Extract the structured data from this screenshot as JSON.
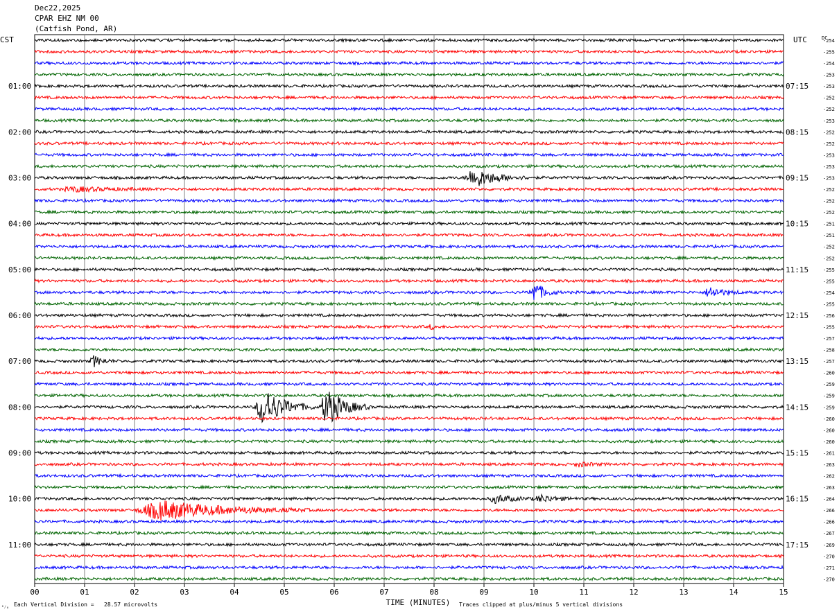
{
  "header": {
    "date": "Dec22,2025",
    "station": "CPAR EHZ NM 00",
    "location": "(Catfish Pond, AR)"
  },
  "left_tz": "CST",
  "right_tz": "UTC",
  "dc_label": "DC",
  "footer": {
    "scale_text": "Each Vertical Division =   28.57 microvolts",
    "clip_text": "Traces clipped at plus/minus 5 vertical divisions",
    "corner_mark": "⁰⁄₀"
  },
  "chart_data": {
    "type": "line",
    "title": "",
    "xlabel": "TIME (MINUTES)",
    "ylabel": "",
    "xlim": [
      0,
      15
    ],
    "x_ticks": [
      "00",
      "01",
      "02",
      "03",
      "04",
      "05",
      "06",
      "07",
      "08",
      "09",
      "10",
      "11",
      "12",
      "13",
      "14",
      "15"
    ],
    "trace_minutes": 15,
    "trace_count": 48,
    "trace_colors": [
      "#000000",
      "#ff0000",
      "#0000ff",
      "#006400"
    ],
    "grid": true,
    "left_hour_labels": [
      "01:00",
      "02:00",
      "03:00",
      "04:00",
      "05:00",
      "06:00",
      "07:00",
      "08:00",
      "09:00",
      "10:00",
      "11:00"
    ],
    "right_hour_labels": [
      "07:15",
      "08:15",
      "09:15",
      "10:15",
      "11:15",
      "12:15",
      "13:15",
      "14:15",
      "15:15",
      "16:15",
      "17:15"
    ],
    "dc_offsets": [
      -254,
      -255,
      -254,
      -253,
      -253,
      -252,
      -252,
      -253,
      -252,
      -252,
      -253,
      -253,
      -253,
      -252,
      -252,
      -252,
      -251,
      -251,
      -252,
      -252,
      -255,
      -255,
      -254,
      -255,
      -256,
      -255,
      -257,
      -258,
      -257,
      -260,
      -259,
      -259,
      -259,
      -260,
      -260,
      -260,
      -261,
      -263,
      -262,
      -263,
      -264,
      -266,
      -266,
      -267,
      -269,
      -270,
      -271,
      -270
    ],
    "events": [
      {
        "trace": 12,
        "minute": 8.6,
        "duration": 1.3,
        "amplitude": 14,
        "color": "#ff0000"
      },
      {
        "trace": 13,
        "minute": 0.5,
        "duration": 2.0,
        "amplitude": 3,
        "color": "#0000ff"
      },
      {
        "trace": 22,
        "minute": 9.9,
        "duration": 0.6,
        "amplitude": 16,
        "color": "#0000ff"
      },
      {
        "trace": 22,
        "minute": 13.4,
        "duration": 0.8,
        "amplitude": 8,
        "color": "#0000ff"
      },
      {
        "trace": 25,
        "minute": 7.9,
        "duration": 0.2,
        "amplitude": 4,
        "color": "#ff0000"
      },
      {
        "trace": 28,
        "minute": 1.1,
        "duration": 0.5,
        "amplitude": 8,
        "color": "#000000"
      },
      {
        "trace": 32,
        "minute": 4.4,
        "duration": 1.2,
        "amplitude": 28,
        "color": "#000000"
      },
      {
        "trace": 32,
        "minute": 5.7,
        "duration": 1.0,
        "amplitude": 28,
        "color": "#000000"
      },
      {
        "trace": 37,
        "minute": 10.8,
        "duration": 0.7,
        "amplitude": 3,
        "color": "#ff0000"
      },
      {
        "trace": 40,
        "minute": 9.1,
        "duration": 0.9,
        "amplitude": 6,
        "color": "#000000"
      },
      {
        "trace": 40,
        "minute": 10.0,
        "duration": 0.9,
        "amplitude": 5,
        "color": "#000000"
      },
      {
        "trace": 41,
        "minute": 2.0,
        "duration": 3.5,
        "amplitude": 14,
        "color": "#ff0000"
      }
    ]
  }
}
